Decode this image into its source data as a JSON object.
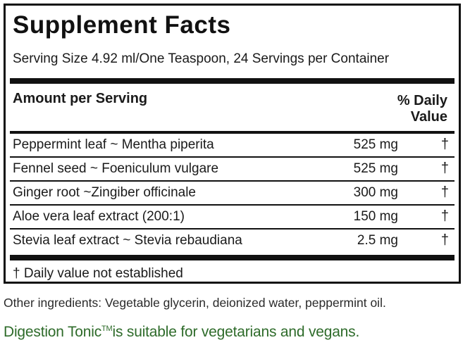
{
  "panel": {
    "title": "Supplement Facts",
    "serving": "Serving Size 4.92 ml/One Teaspoon, 24 Servings per Container",
    "amount_header": "Amount per Serving",
    "dv_header_line1": "% Daily",
    "dv_header_line2": "Value",
    "rows": [
      {
        "name": "Peppermint leaf ~ Mentha piperita",
        "amount": "525 mg",
        "dv": "†"
      },
      {
        "name": "Fennel seed ~ Foeniculum vulgare",
        "amount": "525 mg",
        "dv": "†"
      },
      {
        "name": "Ginger root ~Zingiber officinale",
        "amount": "300 mg",
        "dv": "†"
      },
      {
        "name": "Aloe vera leaf extract (200:1)",
        "amount": "150 mg",
        "dv": "†"
      },
      {
        "name": "Stevia leaf extract ~ Stevia rebaudiana",
        "amount": "2.5 mg",
        "dv": "†"
      }
    ],
    "footnote": "† Daily value not established"
  },
  "other_ingredients": "Other ingredients: Vegetable glycerin, deionized water, peppermint oil.",
  "claim": {
    "product": "Digestion Tonic",
    "trademark": "TM",
    "text": "is suitable for vegetarians and vegans."
  },
  "colors": {
    "claim_green": "#2e6b2a",
    "border": "#111111"
  }
}
